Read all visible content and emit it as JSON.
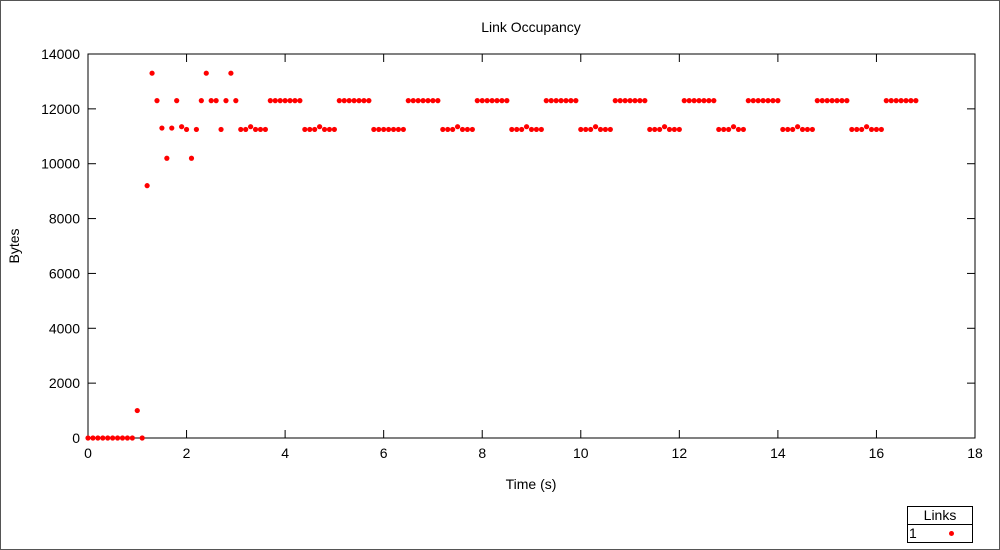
{
  "chart_data": {
    "type": "scatter",
    "title": "Link Occupancy",
    "xlabel": "Time (s)",
    "ylabel": "Bytes",
    "xlim": [
      0,
      18
    ],
    "ylim": [
      0,
      14000
    ],
    "xticks": [
      0,
      2,
      4,
      6,
      8,
      10,
      12,
      14,
      16,
      18
    ],
    "yticks": [
      0,
      2000,
      4000,
      6000,
      8000,
      10000,
      12000,
      14000
    ],
    "grid": false,
    "legend": {
      "title": "Links",
      "placement": "bottom-right"
    },
    "series": [
      {
        "name": "1",
        "color": "#ff0000",
        "points": [
          [
            0.0,
            0
          ],
          [
            0.1,
            0
          ],
          [
            0.2,
            0
          ],
          [
            0.3,
            0
          ],
          [
            0.4,
            0
          ],
          [
            0.5,
            0
          ],
          [
            0.6,
            0
          ],
          [
            0.7,
            0
          ],
          [
            0.8,
            0
          ],
          [
            0.9,
            0
          ],
          [
            1.0,
            1000
          ],
          [
            1.1,
            0
          ],
          [
            1.2,
            9200
          ],
          [
            1.3,
            13300
          ],
          [
            1.4,
            12300
          ],
          [
            1.5,
            11300
          ],
          [
            1.6,
            10200
          ],
          [
            1.7,
            11300
          ],
          [
            1.8,
            12300
          ],
          [
            1.9,
            11350
          ],
          [
            2.0,
            11250
          ],
          [
            2.1,
            10200
          ],
          [
            2.2,
            11250
          ],
          [
            2.3,
            12300
          ],
          [
            2.4,
            13300
          ],
          [
            2.5,
            12300
          ],
          [
            2.6,
            12300
          ],
          [
            2.7,
            11250
          ],
          [
            2.8,
            12300
          ],
          [
            2.9,
            13300
          ],
          [
            3.0,
            12300
          ],
          [
            3.1,
            11250
          ],
          [
            3.2,
            11250
          ],
          [
            3.3,
            11350
          ],
          [
            3.4,
            11250
          ],
          [
            3.5,
            11250
          ],
          [
            3.6,
            11250
          ],
          [
            3.7,
            12300
          ],
          [
            3.8,
            12300
          ],
          [
            3.9,
            12300
          ],
          [
            4.0,
            12300
          ],
          [
            4.1,
            12300
          ],
          [
            4.2,
            12300
          ],
          [
            4.3,
            12300
          ],
          [
            4.4,
            11250
          ],
          [
            4.5,
            11250
          ],
          [
            4.6,
            11250
          ],
          [
            4.7,
            11350
          ],
          [
            4.8,
            11250
          ],
          [
            4.9,
            11250
          ],
          [
            5.0,
            11250
          ],
          [
            5.1,
            12300
          ],
          [
            5.2,
            12300
          ],
          [
            5.3,
            12300
          ],
          [
            5.4,
            12300
          ],
          [
            5.5,
            12300
          ],
          [
            5.6,
            12300
          ],
          [
            5.7,
            12300
          ],
          [
            5.8,
            11250
          ],
          [
            5.9,
            11250
          ],
          [
            6.0,
            11250
          ],
          [
            6.1,
            11250
          ],
          [
            6.2,
            11250
          ],
          [
            6.3,
            11250
          ],
          [
            6.4,
            11250
          ],
          [
            6.5,
            12300
          ],
          [
            6.6,
            12300
          ],
          [
            6.7,
            12300
          ],
          [
            6.8,
            12300
          ],
          [
            6.9,
            12300
          ],
          [
            7.0,
            12300
          ],
          [
            7.1,
            12300
          ],
          [
            7.2,
            11250
          ],
          [
            7.3,
            11250
          ],
          [
            7.4,
            11250
          ],
          [
            7.5,
            11350
          ],
          [
            7.6,
            11250
          ],
          [
            7.7,
            11250
          ],
          [
            7.8,
            11250
          ],
          [
            7.9,
            12300
          ],
          [
            8.0,
            12300
          ],
          [
            8.1,
            12300
          ],
          [
            8.2,
            12300
          ],
          [
            8.3,
            12300
          ],
          [
            8.4,
            12300
          ],
          [
            8.5,
            12300
          ],
          [
            8.6,
            11250
          ],
          [
            8.7,
            11250
          ],
          [
            8.8,
            11250
          ],
          [
            8.9,
            11350
          ],
          [
            9.0,
            11250
          ],
          [
            9.1,
            11250
          ],
          [
            9.2,
            11250
          ],
          [
            9.3,
            12300
          ],
          [
            9.4,
            12300
          ],
          [
            9.5,
            12300
          ],
          [
            9.6,
            12300
          ],
          [
            9.7,
            12300
          ],
          [
            9.8,
            12300
          ],
          [
            9.9,
            12300
          ],
          [
            10.0,
            11250
          ],
          [
            10.1,
            11250
          ],
          [
            10.2,
            11250
          ],
          [
            10.3,
            11350
          ],
          [
            10.4,
            11250
          ],
          [
            10.5,
            11250
          ],
          [
            10.6,
            11250
          ],
          [
            10.7,
            12300
          ],
          [
            10.8,
            12300
          ],
          [
            10.9,
            12300
          ],
          [
            11.0,
            12300
          ],
          [
            11.1,
            12300
          ],
          [
            11.2,
            12300
          ],
          [
            11.3,
            12300
          ],
          [
            11.4,
            11250
          ],
          [
            11.5,
            11250
          ],
          [
            11.6,
            11250
          ],
          [
            11.7,
            11350
          ],
          [
            11.8,
            11250
          ],
          [
            11.9,
            11250
          ],
          [
            12.0,
            11250
          ],
          [
            12.1,
            12300
          ],
          [
            12.2,
            12300
          ],
          [
            12.3,
            12300
          ],
          [
            12.4,
            12300
          ],
          [
            12.5,
            12300
          ],
          [
            12.6,
            12300
          ],
          [
            12.7,
            12300
          ],
          [
            12.8,
            11250
          ],
          [
            12.9,
            11250
          ],
          [
            13.0,
            11250
          ],
          [
            13.1,
            11350
          ],
          [
            13.2,
            11250
          ],
          [
            13.3,
            11250
          ],
          [
            13.4,
            12300
          ],
          [
            13.5,
            12300
          ],
          [
            13.6,
            12300
          ],
          [
            13.7,
            12300
          ],
          [
            13.8,
            12300
          ],
          [
            13.9,
            12300
          ],
          [
            14.0,
            12300
          ],
          [
            14.1,
            11250
          ],
          [
            14.2,
            11250
          ],
          [
            14.3,
            11250
          ],
          [
            14.4,
            11350
          ],
          [
            14.5,
            11250
          ],
          [
            14.6,
            11250
          ],
          [
            14.7,
            11250
          ],
          [
            14.8,
            12300
          ],
          [
            14.9,
            12300
          ],
          [
            15.0,
            12300
          ],
          [
            15.1,
            12300
          ],
          [
            15.2,
            12300
          ],
          [
            15.3,
            12300
          ],
          [
            15.4,
            12300
          ],
          [
            15.5,
            11250
          ],
          [
            15.6,
            11250
          ],
          [
            15.7,
            11250
          ],
          [
            15.8,
            11350
          ],
          [
            15.9,
            11250
          ],
          [
            16.0,
            11250
          ],
          [
            16.1,
            11250
          ],
          [
            16.2,
            12300
          ],
          [
            16.3,
            12300
          ],
          [
            16.4,
            12300
          ],
          [
            16.5,
            12300
          ],
          [
            16.6,
            12300
          ],
          [
            16.7,
            12300
          ],
          [
            16.8,
            12300
          ]
        ]
      }
    ]
  }
}
